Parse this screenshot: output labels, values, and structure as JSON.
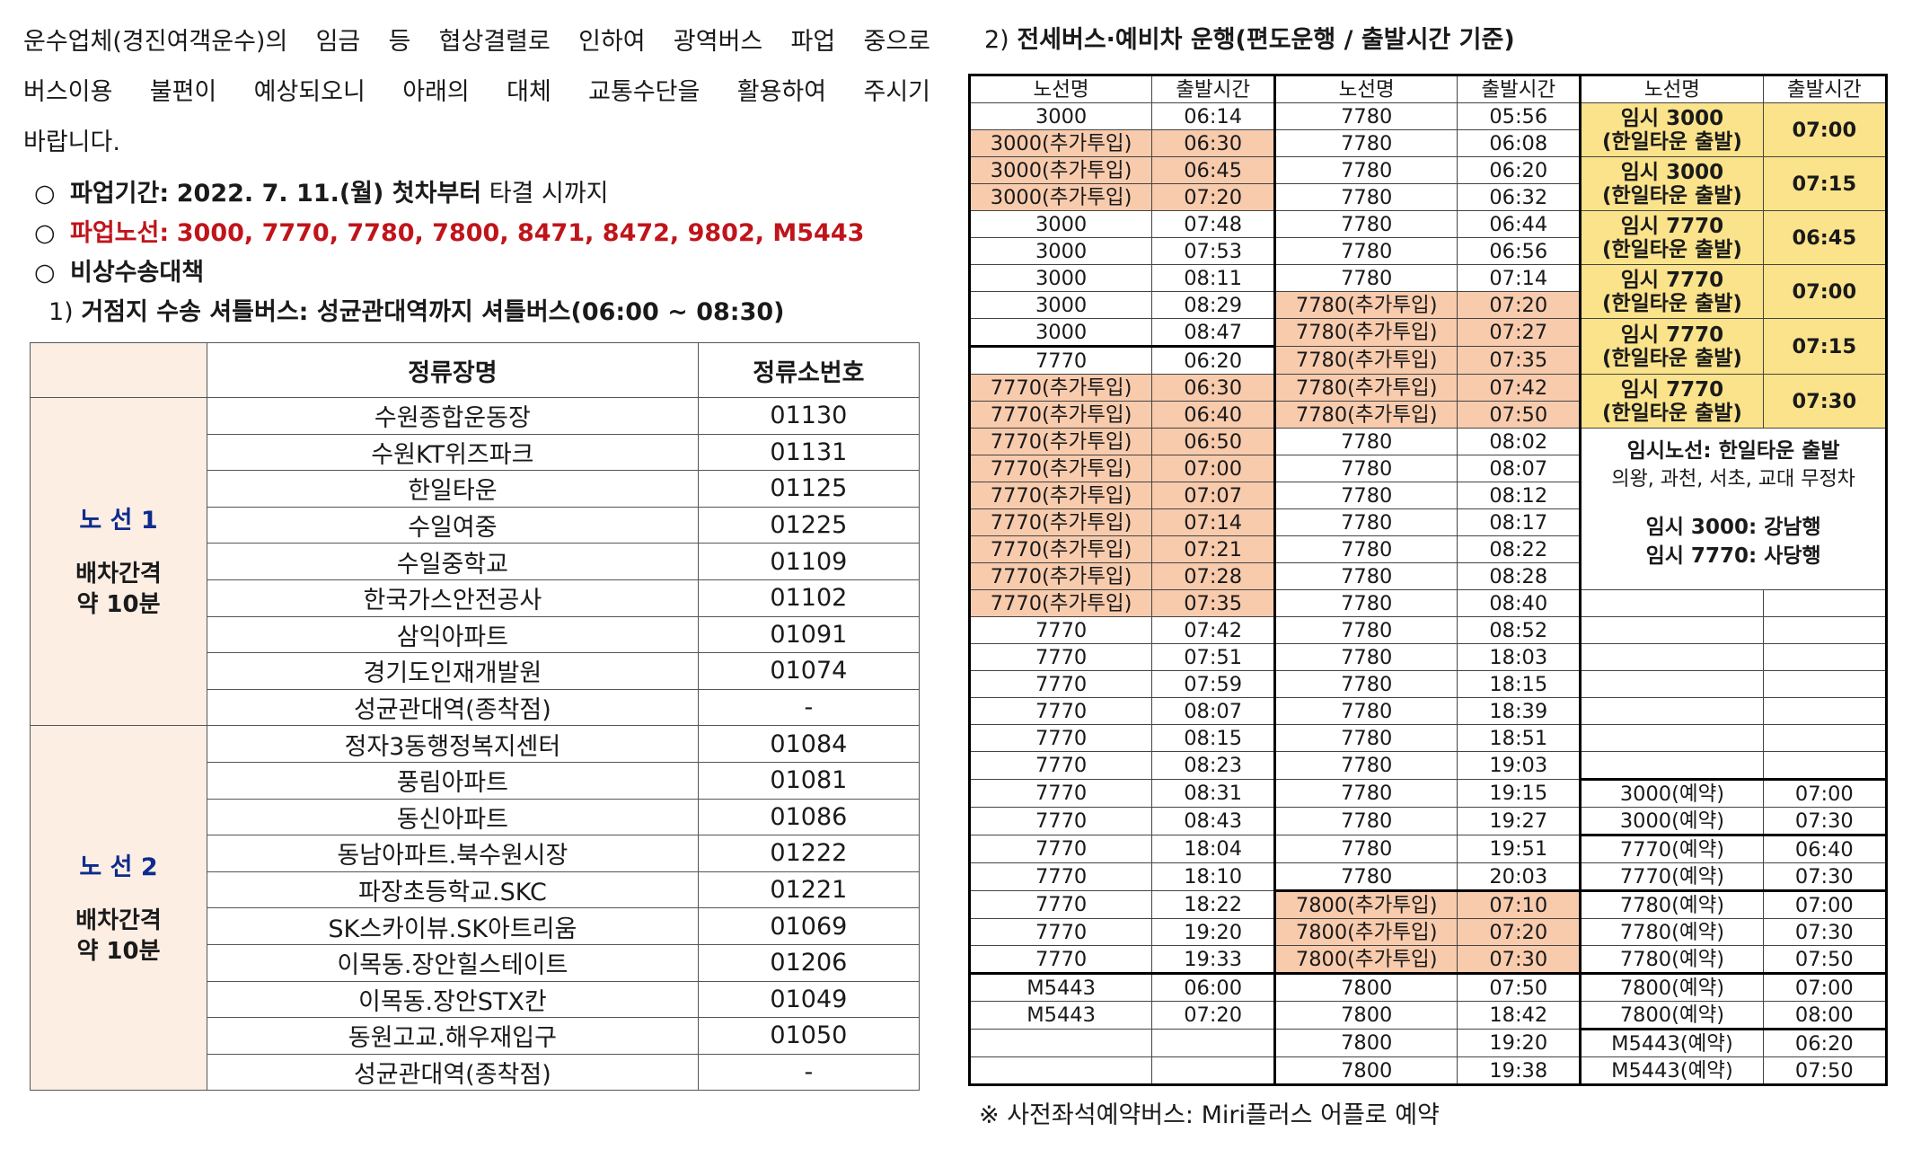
{
  "intro": {
    "line1": "운수업체(경진여객운수)의 임금 등 협상결렬로 인하여 광역버스 파업 중으로",
    "line2": "버스이용 불편이 예상되오니 아래의 대체 교통수단을 활용하여 주시기",
    "line3": "바랍니다."
  },
  "bullets": {
    "mark": "○",
    "period_label": "파업기간:",
    "period_value": "2022. 7. 11.(월) 첫차부터",
    "period_tail": "타결 시까지",
    "routes_label": "파업노선:",
    "routes_value": "3000, 7770, 7780, 7800, 8471, 8472, 9802, M5443",
    "emergency": "비상수송대책"
  },
  "shuttle": {
    "title_num": "1)",
    "title": "거점지 수송 셔틀버스: 성균관대역까지 셔틀버스(06:00 ~ 08:30)",
    "header_stop": "정류장명",
    "header_id": "정류소번호",
    "route1": {
      "label": "노 선 1",
      "interval1": "배차간격",
      "interval2": "약 10분",
      "stops": [
        {
          "name": "수원종합운동장",
          "id": "01130"
        },
        {
          "name": "수원KT위즈파크",
          "id": "01131"
        },
        {
          "name": "한일타운",
          "id": "01125"
        },
        {
          "name": "수일여중",
          "id": "01225"
        },
        {
          "name": "수일중학교",
          "id": "01109"
        },
        {
          "name": "한국가스안전공사",
          "id": "01102"
        },
        {
          "name": "삼익아파트",
          "id": "01091"
        },
        {
          "name": "경기도인재개발원",
          "id": "01074"
        },
        {
          "name": "성균관대역(종착점)",
          "id": "-"
        }
      ]
    },
    "route2": {
      "label": "노 선 2",
      "interval1": "배차간격",
      "interval2": "약 10분",
      "stops": [
        {
          "name": "정자3동행정복지센터",
          "id": "01084"
        },
        {
          "name": "풍림아파트",
          "id": "01081"
        },
        {
          "name": "동신아파트",
          "id": "01086"
        },
        {
          "name": "동남아파트.북수원시장",
          "id": "01222"
        },
        {
          "name": "파장초등학교.SKC",
          "id": "01221"
        },
        {
          "name": "SK스카이뷰.SK아트리움",
          "id": "01069"
        },
        {
          "name": "이목동.장안힐스테이트",
          "id": "01206"
        },
        {
          "name": "이목동.장안STX칸",
          "id": "01049"
        },
        {
          "name": "동원고교.해우재입구",
          "id": "01050"
        },
        {
          "name": "성균관대역(종착점)",
          "id": "-"
        }
      ]
    }
  },
  "schedule": {
    "title_num": "2)",
    "title": "전세버스·예비차 운행(편도운행 / 출발시간 기준)",
    "header_route": "노선명",
    "header_time": "출발시간",
    "col1": [
      {
        "r": "3000",
        "t": "06:14",
        "hl": ""
      },
      {
        "r": "3000(추가투입)",
        "t": "06:30",
        "hl": "or"
      },
      {
        "r": "3000(추가투입)",
        "t": "06:45",
        "hl": "or"
      },
      {
        "r": "3000(추가투입)",
        "t": "07:20",
        "hl": "or"
      },
      {
        "r": "3000",
        "t": "07:48",
        "hl": ""
      },
      {
        "r": "3000",
        "t": "07:53",
        "hl": ""
      },
      {
        "r": "3000",
        "t": "08:11",
        "hl": ""
      },
      {
        "r": "3000",
        "t": "08:29",
        "hl": ""
      },
      {
        "r": "3000",
        "t": "08:47",
        "hl": ""
      },
      {
        "r": "7770",
        "t": "06:20",
        "hl": "",
        "top": 1
      },
      {
        "r": "7770(추가투입)",
        "t": "06:30",
        "hl": "or"
      },
      {
        "r": "7770(추가투입)",
        "t": "06:40",
        "hl": "or"
      },
      {
        "r": "7770(추가투입)",
        "t": "06:50",
        "hl": "or"
      },
      {
        "r": "7770(추가투입)",
        "t": "07:00",
        "hl": "or"
      },
      {
        "r": "7770(추가투입)",
        "t": "07:07",
        "hl": "or"
      },
      {
        "r": "7770(추가투입)",
        "t": "07:14",
        "hl": "or"
      },
      {
        "r": "7770(추가투입)",
        "t": "07:21",
        "hl": "or"
      },
      {
        "r": "7770(추가투입)",
        "t": "07:28",
        "hl": "or"
      },
      {
        "r": "7770(추가투입)",
        "t": "07:35",
        "hl": "or"
      },
      {
        "r": "7770",
        "t": "07:42",
        "hl": ""
      },
      {
        "r": "7770",
        "t": "07:51",
        "hl": ""
      },
      {
        "r": "7770",
        "t": "07:59",
        "hl": ""
      },
      {
        "r": "7770",
        "t": "08:07",
        "hl": ""
      },
      {
        "r": "7770",
        "t": "08:15",
        "hl": ""
      },
      {
        "r": "7770",
        "t": "08:23",
        "hl": ""
      },
      {
        "r": "7770",
        "t": "08:31",
        "hl": ""
      },
      {
        "r": "7770",
        "t": "08:43",
        "hl": ""
      },
      {
        "r": "7770",
        "t": "18:04",
        "hl": ""
      },
      {
        "r": "7770",
        "t": "18:10",
        "hl": ""
      },
      {
        "r": "7770",
        "t": "18:22",
        "hl": ""
      },
      {
        "r": "7770",
        "t": "19:20",
        "hl": ""
      },
      {
        "r": "7770",
        "t": "19:33",
        "hl": ""
      },
      {
        "r": "M5443",
        "t": "06:00",
        "hl": "",
        "top": 1
      },
      {
        "r": "M5443",
        "t": "07:20",
        "hl": ""
      },
      {
        "r": "",
        "t": "",
        "hl": ""
      },
      {
        "r": "",
        "t": "",
        "hl": ""
      }
    ],
    "col2": [
      {
        "r": "7780",
        "t": "05:56",
        "hl": ""
      },
      {
        "r": "7780",
        "t": "06:08",
        "hl": ""
      },
      {
        "r": "7780",
        "t": "06:20",
        "hl": ""
      },
      {
        "r": "7780",
        "t": "06:32",
        "hl": ""
      },
      {
        "r": "7780",
        "t": "06:44",
        "hl": ""
      },
      {
        "r": "7780",
        "t": "06:56",
        "hl": ""
      },
      {
        "r": "7780",
        "t": "07:14",
        "hl": ""
      },
      {
        "r": "7780(추가투입)",
        "t": "07:20",
        "hl": "or"
      },
      {
        "r": "7780(추가투입)",
        "t": "07:27",
        "hl": "or"
      },
      {
        "r": "7780(추가투입)",
        "t": "07:35",
        "hl": "or"
      },
      {
        "r": "7780(추가투입)",
        "t": "07:42",
        "hl": "or"
      },
      {
        "r": "7780(추가투입)",
        "t": "07:50",
        "hl": "or"
      },
      {
        "r": "7780",
        "t": "08:02",
        "hl": ""
      },
      {
        "r": "7780",
        "t": "08:07",
        "hl": ""
      },
      {
        "r": "7780",
        "t": "08:12",
        "hl": ""
      },
      {
        "r": "7780",
        "t": "08:17",
        "hl": ""
      },
      {
        "r": "7780",
        "t": "08:22",
        "hl": ""
      },
      {
        "r": "7780",
        "t": "08:28",
        "hl": ""
      },
      {
        "r": "7780",
        "t": "08:40",
        "hl": ""
      },
      {
        "r": "7780",
        "t": "08:52",
        "hl": ""
      },
      {
        "r": "7780",
        "t": "18:03",
        "hl": ""
      },
      {
        "r": "7780",
        "t": "18:15",
        "hl": ""
      },
      {
        "r": "7780",
        "t": "18:39",
        "hl": ""
      },
      {
        "r": "7780",
        "t": "18:51",
        "hl": ""
      },
      {
        "r": "7780",
        "t": "19:03",
        "hl": ""
      },
      {
        "r": "7780",
        "t": "19:15",
        "hl": ""
      },
      {
        "r": "7780",
        "t": "19:27",
        "hl": ""
      },
      {
        "r": "7780",
        "t": "19:51",
        "hl": ""
      },
      {
        "r": "7780",
        "t": "20:03",
        "hl": ""
      },
      {
        "r": "7800(추가투입)",
        "t": "07:10",
        "hl": "or",
        "top": 1
      },
      {
        "r": "7800(추가투입)",
        "t": "07:20",
        "hl": "or"
      },
      {
        "r": "7800(추가투입)",
        "t": "07:30",
        "hl": "or"
      },
      {
        "r": "7800",
        "t": "07:50",
        "hl": "",
        "top": 1
      },
      {
        "r": "7800",
        "t": "18:42",
        "hl": ""
      },
      {
        "r": "7800",
        "t": "19:20",
        "hl": ""
      },
      {
        "r": "7800",
        "t": "19:38",
        "hl": ""
      }
    ],
    "col3_temp": [
      {
        "n1": "임시 3000",
        "n2": "(한일타운 출발)",
        "t": "07:00"
      },
      {
        "n1": "임시 3000",
        "n2": "(한일타운 출발)",
        "t": "07:15"
      },
      {
        "n1": "임시 7770",
        "n2": "(한일타운 출발)",
        "t": "06:45"
      },
      {
        "n1": "임시 7770",
        "n2": "(한일타운 출발)",
        "t": "07:00"
      },
      {
        "n1": "임시 7770",
        "n2": "(한일타운 출발)",
        "t": "07:15"
      },
      {
        "n1": "임시 7770",
        "n2": "(한일타운 출발)",
        "t": "07:30"
      }
    ],
    "col3_note": {
      "line1": "임시노선: 한일타운 출발",
      "line2": "의왕, 과천, 서초, 교대 무정차",
      "line3": "임시 3000: 강남행",
      "line4": "임시 7770: 사당행"
    },
    "col3_reserve": [
      {
        "r": "3000(예약)",
        "t": "07:00",
        "top": 1
      },
      {
        "r": "3000(예약)",
        "t": "07:30"
      },
      {
        "r": "7770(예약)",
        "t": "06:40",
        "top": 1
      },
      {
        "r": "7770(예약)",
        "t": "07:30"
      },
      {
        "r": "7780(예약)",
        "t": "07:00",
        "top": 1
      },
      {
        "r": "7780(예약)",
        "t": "07:30"
      },
      {
        "r": "7780(예약)",
        "t": "07:50"
      },
      {
        "r": "7800(예약)",
        "t": "07:00",
        "top": 1
      },
      {
        "r": "7800(예약)",
        "t": "08:00"
      },
      {
        "r": "M5443(예약)",
        "t": "06:20",
        "top": 1
      },
      {
        "r": "M5443(예약)",
        "t": "07:50"
      }
    ]
  },
  "footer": "※ 사전좌석예약버스: Miri플러스 어플로 예약",
  "colors": {
    "orange": "#f8cbad",
    "yellow": "#fae38a",
    "red": "#c0141b",
    "blue": "#0d2b8e",
    "peach": "#fdeee4"
  }
}
